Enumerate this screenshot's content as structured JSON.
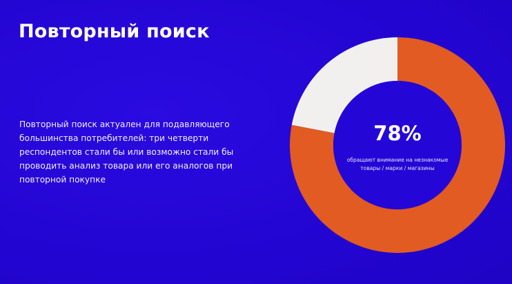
{
  "slide": {
    "title": "Повторный поиск",
    "body": "Повторный поиск актуален для подавляющего большинства потребителей: три четверти респондентов стали бы или возможно стали бы проводить анализ товара или его аналогов при повторной покупке"
  },
  "chart_data": {
    "type": "pie",
    "donut": true,
    "slices": [
      {
        "value": 78,
        "color": "#e15b22"
      },
      {
        "value": 22,
        "color": "#f2f0ee"
      }
    ],
    "center_label": "78%",
    "center_caption_lines": [
      "обращают внимание на незнакомые",
      "товары / марки / магазины"
    ],
    "background_color": "#2407d6"
  }
}
